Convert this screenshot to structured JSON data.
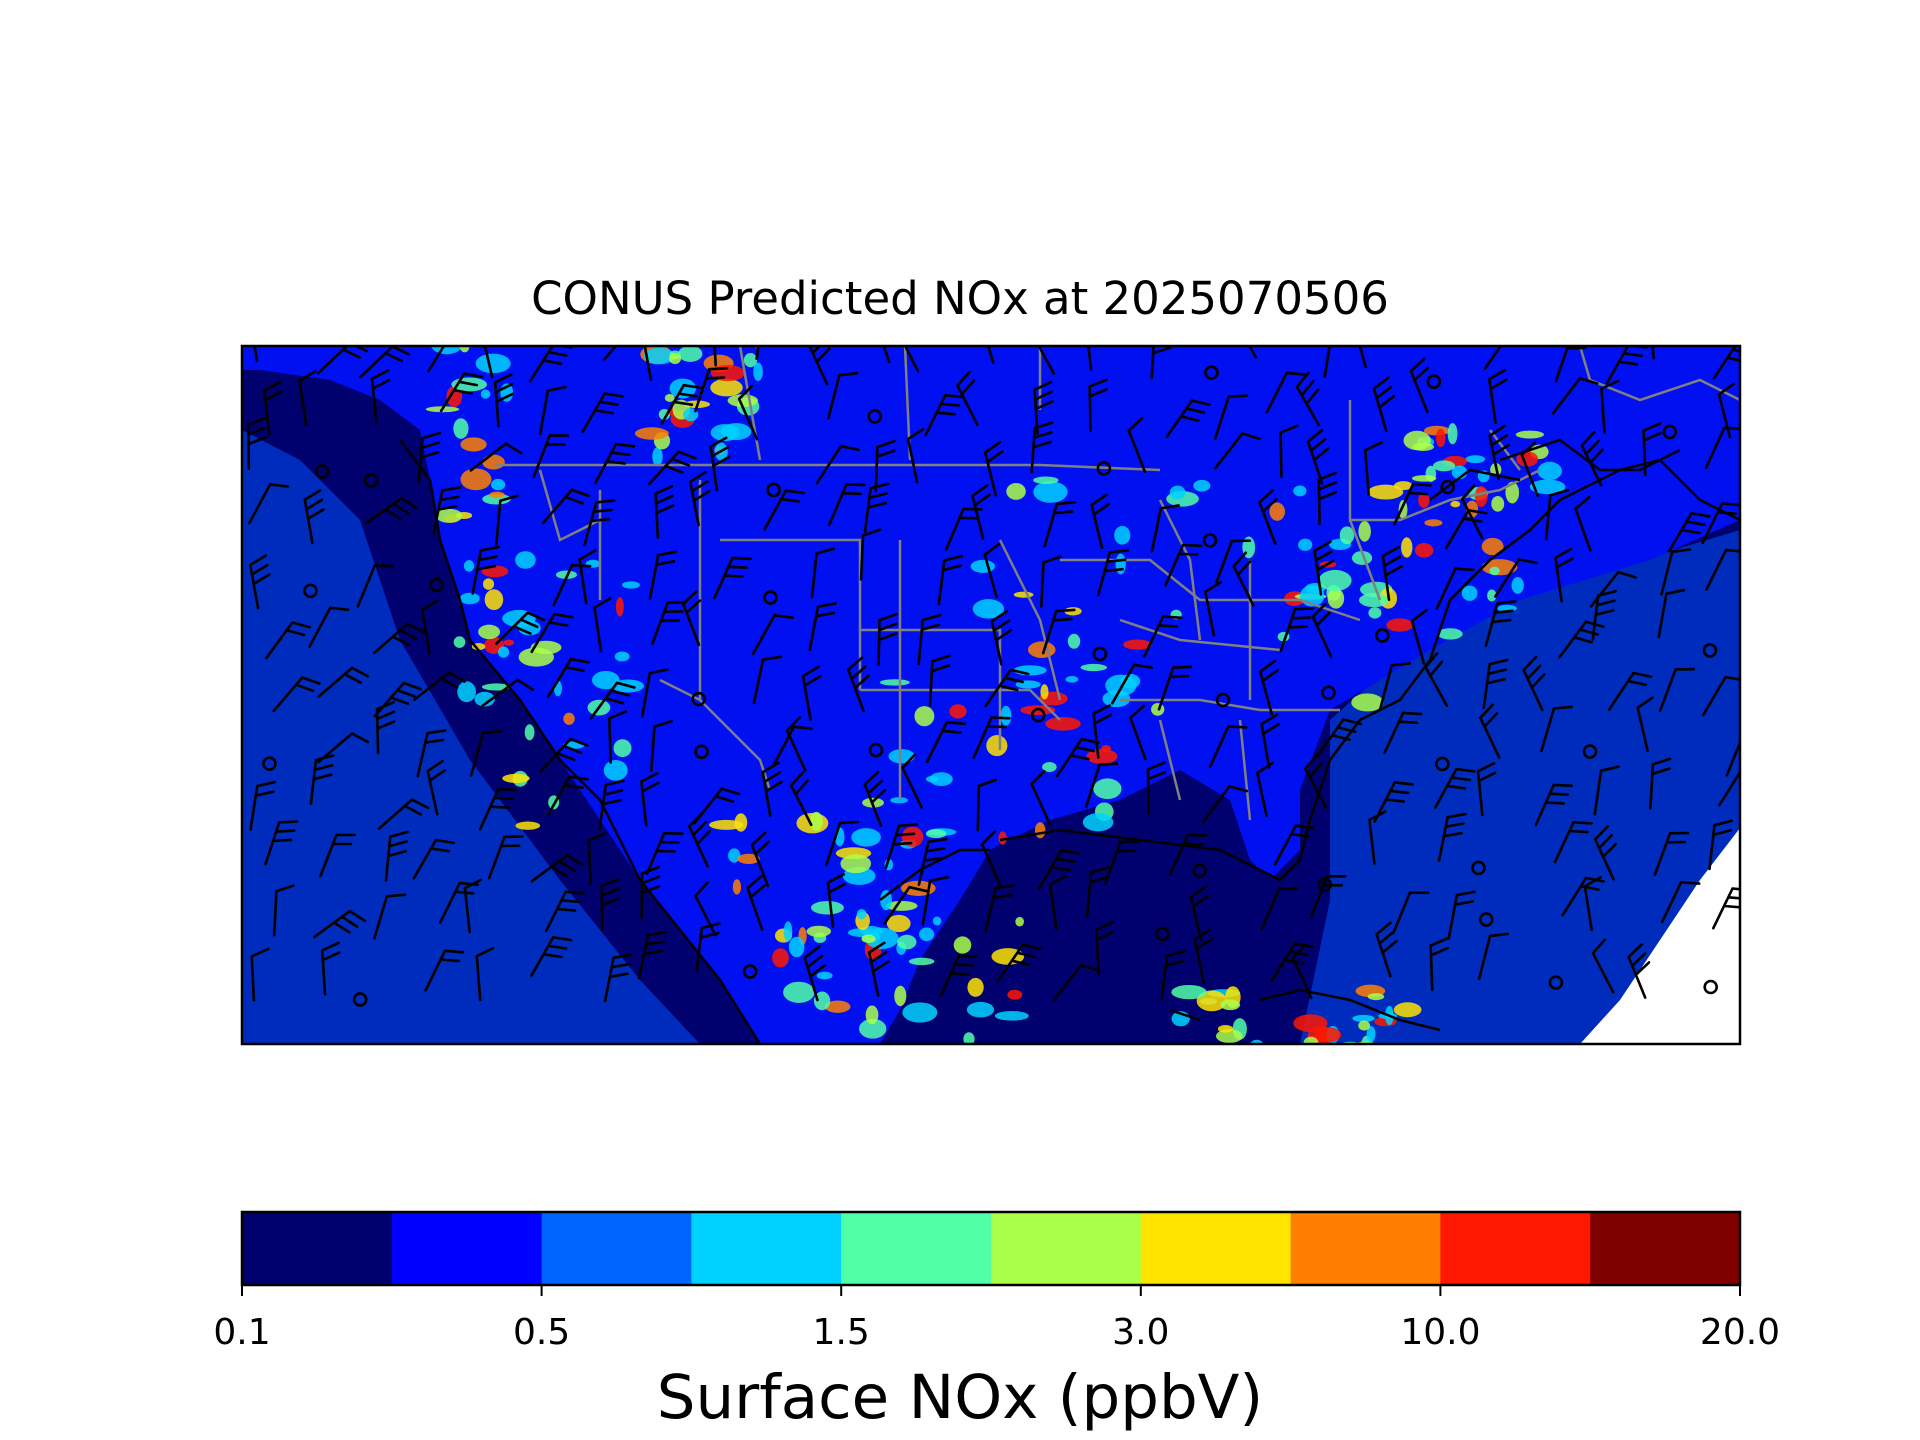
{
  "title": "CONUS Predicted NOx at 2025070506",
  "colorbar": {
    "label": "Surface NOx (ppbV)",
    "ticks": [
      "0.1",
      "0.5",
      "1.5",
      "3.0",
      "10.0",
      "20.0"
    ],
    "tick_bins": [
      0,
      2,
      4,
      6,
      8,
      10
    ],
    "colors": [
      "#00006e",
      "#0000ff",
      "#0064ff",
      "#00d2ff",
      "#50ffa8",
      "#aaff48",
      "#ffe400",
      "#ff8000",
      "#ff1800",
      "#800000"
    ]
  },
  "map": {
    "background_color": "#00006e",
    "land_color": "#0010f0",
    "ocean_mid_color": "#0050ff",
    "border_color": "#808080",
    "coast_color": "#000000",
    "barb_color": "#000000"
  }
}
